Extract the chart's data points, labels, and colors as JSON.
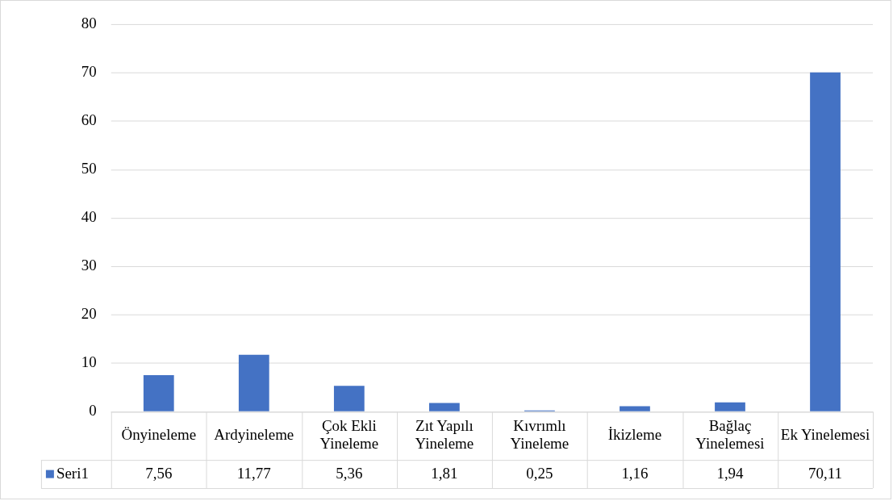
{
  "chart_data": {
    "type": "bar",
    "categories": [
      "Önyineleme",
      "Ardyineleme",
      "Çok Ekli Yineleme",
      "Zıt Yapılı Yineleme",
      "Kıvrımlı Yineleme",
      "İkizleme",
      "Bağlaç Yinelemesi",
      "Ek Yinelemesi"
    ],
    "series": [
      {
        "name": "Seri1",
        "color": "#4472c4",
        "values": [
          7.56,
          11.77,
          5.36,
          1.81,
          0.25,
          1.16,
          1.94,
          70.11
        ],
        "value_labels": [
          "7,56",
          "11,77",
          "5,36",
          "1,81",
          "0,25",
          "1,16",
          "1,94",
          "70,11"
        ]
      }
    ],
    "ylim": [
      0,
      80
    ],
    "yticks": [
      0,
      10,
      20,
      30,
      40,
      50,
      60,
      70,
      80
    ],
    "grid": "y",
    "legend": "bottom"
  }
}
